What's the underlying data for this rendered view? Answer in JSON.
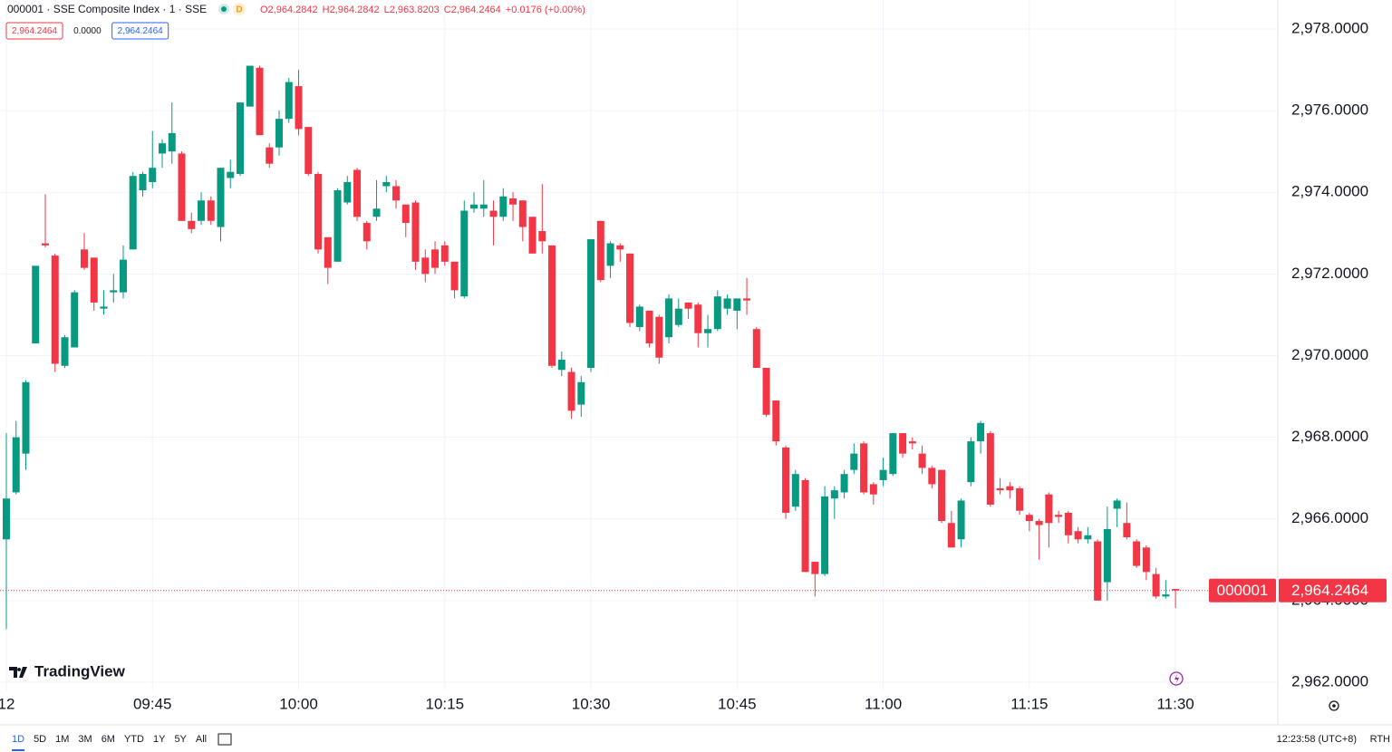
{
  "header": {
    "symbol_line": "000001 · SSE Composite Index · 1 · SSE",
    "badge": "D",
    "ohlc": [
      "O2,964.2842",
      "H2,964.2842",
      "L2,963.8203",
      "C2,964.2464",
      "+0.0176 (+0.00%)"
    ],
    "price_badges": [
      "2,964.2464",
      "0.0000",
      "2,964.2464"
    ],
    "logo": "TradingView"
  },
  "chart_data": {
    "type": "candlestick",
    "up_color": "#089981",
    "down_color": "#f23645",
    "grid": true,
    "xlim": [
      -0.65,
      130.5
    ],
    "ylim": [
      2961.8,
      2978.71
    ],
    "xticks": [
      {
        "value": 0,
        "label": "12"
      },
      {
        "value": 15,
        "label": "09:45"
      },
      {
        "value": 30,
        "label": "10:00"
      },
      {
        "value": 45,
        "label": "10:15"
      },
      {
        "value": 60,
        "label": "10:30"
      },
      {
        "value": 75,
        "label": "10:45"
      },
      {
        "value": 90,
        "label": "11:00"
      },
      {
        "value": 105,
        "label": "11:15"
      },
      {
        "value": 120,
        "label": "11:30"
      }
    ],
    "yticks": [
      {
        "value": 2962,
        "label": "2,962.0000"
      },
      {
        "value": 2964,
        "label": "2,964.0000"
      },
      {
        "value": 2966,
        "label": "2,966.0000"
      },
      {
        "value": 2968,
        "label": "2,968.0000"
      },
      {
        "value": 2970,
        "label": "2,970.0000"
      },
      {
        "value": 2972,
        "label": "2,972.0000"
      },
      {
        "value": 2974,
        "label": "2,974.0000"
      },
      {
        "value": 2976,
        "label": "2,976.0000"
      },
      {
        "value": 2978,
        "label": "2,978.0000"
      }
    ],
    "open": [
      2965.5,
      2966.65,
      2967.6,
      2970.3,
      2972.75,
      2972.45,
      2969.75,
      2970.2,
      2972.6,
      2972.4,
      2971.15,
      2971.55,
      2971.55,
      2972.6,
      2974.05,
      2974.25,
      2974.95,
      2975.0,
      2974.95,
      2973.3,
      2973.3,
      2973.8,
      2973.15,
      2974.35,
      2974.45,
      2976.1,
      2977.05,
      2975.1,
      2975.1,
      2975.8,
      2976.6,
      2975.6,
      2974.45,
      2972.9,
      2972.3,
      2973.75,
      2974.55,
      2973.25,
      2973.4,
      2974.15,
      2974.15,
      2973.7,
      2973.75,
      2972.4,
      2972.6,
      2972.7,
      2972.3,
      2971.45,
      2973.6,
      2973.6,
      2973.55,
      2973.4,
      2973.85,
      2973.8,
      2973.4,
      2973.05,
      2972.7,
      2969.65,
      2969.6,
      2968.8,
      2969.7,
      2973.3,
      2972.2,
      2972.7,
      2972.5,
      2970.7,
      2971.1,
      2970.95,
      2970.45,
      2970.75,
      2971.3,
      2971.25,
      2970.55,
      2970.65,
      2971.15,
      2971.1,
      2971.4,
      2970.65,
      2969.7,
      2968.9,
      2967.75,
      2966.3,
      2966.95,
      2964.95,
      2964.65,
      2966.5,
      2966.65,
      2967.2,
      2967.85,
      2966.85,
      2966.95,
      2967.1,
      2968.1,
      2967.9,
      2967.6,
      2967.25,
      2967.2,
      2965.9,
      2965.5,
      2966.9,
      2967.9,
      2968.1,
      2966.75,
      2966.8,
      2966.75,
      2966.1,
      2965.95,
      2966.6,
      2966.1,
      2966.15,
      2965.7,
      2965.5,
      2965.45,
      2964.45,
      2966.25,
      2965.9,
      2965.45,
      2965.3,
      2964.65,
      2964.1,
      2964.2842
    ],
    "high": [
      2968.1,
      2968.4,
      2969.4,
      2972.2,
      2973.95,
      2972.5,
      2970.5,
      2971.6,
      2973.0,
      2972.4,
      2971.6,
      2972.0,
      2972.7,
      2974.5,
      2974.5,
      2975.5,
      2975.3,
      2976.2,
      2975.0,
      2973.5,
      2974.0,
      2973.9,
      2974.6,
      2974.8,
      2976.2,
      2977.1,
      2977.1,
      2975.2,
      2976.0,
      2976.8,
      2977.0,
      2975.6,
      2974.5,
      2972.9,
      2974.1,
      2974.4,
      2974.6,
      2973.3,
      2974.3,
      2974.4,
      2974.3,
      2973.7,
      2973.8,
      2972.6,
      2972.8,
      2972.8,
      2972.3,
      2973.8,
      2974.0,
      2974.3,
      2973.8,
      2974.1,
      2974.0,
      2973.8,
      2973.4,
      2974.2,
      2972.7,
      2970.1,
      2969.7,
      2969.5,
      2972.85,
      2973.3,
      2972.8,
      2972.75,
      2972.5,
      2971.25,
      2971.1,
      2971.0,
      2971.5,
      2971.4,
      2971.3,
      2971.3,
      2971.0,
      2971.6,
      2971.5,
      2971.4,
      2971.9,
      2970.7,
      2969.7,
      2968.9,
      2967.8,
      2967.2,
      2967.0,
      2964.95,
      2966.8,
      2966.8,
      2967.2,
      2967.85,
      2967.9,
      2966.9,
      2967.5,
      2968.1,
      2968.1,
      2968.0,
      2967.8,
      2967.3,
      2967.2,
      2966.2,
      2966.5,
      2968.0,
      2968.4,
      2968.15,
      2967.0,
      2966.9,
      2966.8,
      2966.15,
      2966.0,
      2966.65,
      2966.2,
      2966.2,
      2965.8,
      2965.8,
      2965.5,
      2966.3,
      2966.5,
      2966.4,
      2965.5,
      2965.35,
      2964.8,
      2964.5,
      2964.2842
    ],
    "low": [
      2963.3,
      2966.6,
      2967.2,
      2970.3,
      2972.65,
      2969.6,
      2969.7,
      2970.2,
      2972.1,
      2971.1,
      2971.0,
      2971.3,
      2971.4,
      2972.6,
      2973.9,
      2974.1,
      2974.6,
      2974.7,
      2973.3,
      2973.0,
      2973.2,
      2973.2,
      2972.8,
      2974.1,
      2974.4,
      2976.1,
      2975.4,
      2974.6,
      2974.9,
      2975.7,
      2975.4,
      2974.4,
      2972.5,
      2971.75,
      2972.3,
      2973.7,
      2973.3,
      2972.6,
      2973.3,
      2974.0,
      2973.6,
      2972.9,
      2972.1,
      2971.8,
      2972.0,
      2972.2,
      2971.4,
      2971.4,
      2973.5,
      2973.4,
      2972.7,
      2973.3,
      2973.3,
      2972.8,
      2972.5,
      2972.5,
      2969.7,
      2969.5,
      2968.45,
      2968.5,
      2969.6,
      2971.8,
      2971.9,
      2972.3,
      2970.7,
      2970.6,
      2970.2,
      2969.8,
      2970.3,
      2970.7,
      2970.9,
      2970.2,
      2970.2,
      2970.6,
      2971.0,
      2970.65,
      2971.0,
      2969.7,
      2968.5,
      2967.8,
      2966.0,
      2966.2,
      2964.7,
      2964.1,
      2964.6,
      2966.0,
      2966.5,
      2967.1,
      2966.6,
      2966.35,
      2966.8,
      2967.05,
      2967.5,
      2967.7,
      2967.1,
      2966.75,
      2965.9,
      2965.3,
      2965.3,
      2966.8,
      2967.6,
      2966.3,
      2966.6,
      2966.5,
      2966.1,
      2965.7,
      2965.0,
      2965.3,
      2965.9,
      2965.4,
      2965.4,
      2965.4,
      2964.0,
      2964.0,
      2965.8,
      2965.5,
      2964.8,
      2964.5,
      2964.05,
      2964.05,
      2963.8203
    ],
    "close": [
      2966.5,
      2968.0,
      2969.35,
      2972.2,
      2972.7,
      2969.8,
      2970.45,
      2971.55,
      2972.15,
      2971.3,
      2971.2,
      2971.6,
      2972.35,
      2974.4,
      2974.45,
      2974.6,
      2975.2,
      2975.45,
      2973.3,
      2973.1,
      2973.8,
      2973.3,
      2974.6,
      2974.5,
      2976.2,
      2977.1,
      2975.4,
      2974.7,
      2975.8,
      2976.7,
      2975.55,
      2974.45,
      2972.6,
      2972.15,
      2974.05,
      2974.25,
      2973.4,
      2972.8,
      2973.6,
      2974.25,
      2973.8,
      2973.25,
      2972.3,
      2972.0,
      2972.15,
      2972.3,
      2971.6,
      2973.55,
      2973.7,
      2973.7,
      2973.4,
      2973.9,
      2973.7,
      2973.15,
      2972.5,
      2972.8,
      2969.75,
      2969.9,
      2968.65,
      2969.35,
      2972.85,
      2971.85,
      2972.75,
      2972.6,
      2970.8,
      2971.2,
      2970.3,
      2969.95,
      2971.4,
      2971.15,
      2971.15,
      2970.55,
      2970.65,
      2971.45,
      2971.4,
      2971.4,
      2971.35,
      2969.7,
      2968.55,
      2967.9,
      2966.15,
      2967.1,
      2964.7,
      2964.65,
      2966.55,
      2966.7,
      2967.1,
      2967.6,
      2966.65,
      2966.6,
      2967.2,
      2968.1,
      2967.6,
      2967.85,
      2967.25,
      2966.85,
      2965.95,
      2965.3,
      2966.45,
      2967.9,
      2968.35,
      2966.35,
      2966.7,
      2966.7,
      2966.2,
      2965.95,
      2965.85,
      2965.9,
      2966.05,
      2965.6,
      2965.5,
      2965.6,
      2964.0,
      2965.75,
      2966.45,
      2965.55,
      2964.85,
      2964.7,
      2964.1,
      2964.15,
      2964.2464
    ],
    "price_line": {
      "symbol": "000001",
      "value": 2964.2464,
      "label": "2,964.2464"
    }
  },
  "footer": {
    "ranges": [
      "1D",
      "5D",
      "1M",
      "3M",
      "6M",
      "YTD",
      "1Y",
      "5Y",
      "All"
    ],
    "clock": "12:23:58 (UTC+8)",
    "session": "RTH"
  }
}
